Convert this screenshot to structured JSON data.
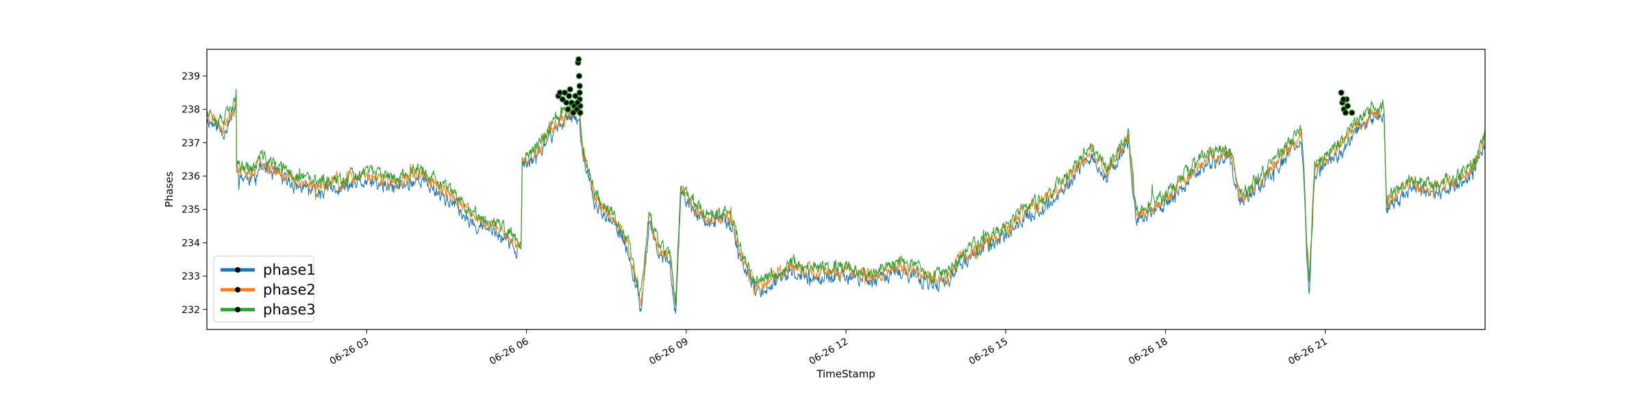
{
  "chart_data": {
    "type": "line",
    "xlabel": "TimeStamp",
    "ylabel": "Phases",
    "xlim_hours": [
      0.0,
      24.0
    ],
    "ylim": [
      231.4,
      239.8
    ],
    "x_ticks": [
      {
        "hour": 3,
        "label": "06-26 03"
      },
      {
        "hour": 6,
        "label": "06-26 06"
      },
      {
        "hour": 9,
        "label": "06-26 09"
      },
      {
        "hour": 12,
        "label": "06-26 12"
      },
      {
        "hour": 15,
        "label": "06-26 15"
      },
      {
        "hour": 18,
        "label": "06-26 18"
      },
      {
        "hour": 21,
        "label": "06-26 21"
      }
    ],
    "y_ticks": [
      232,
      233,
      234,
      235,
      236,
      237,
      238,
      239
    ],
    "legend": {
      "placement": "lower-left"
    },
    "grid": false,
    "base_profile": [
      [
        0.0,
        237.9
      ],
      [
        0.3,
        237.5
      ],
      [
        0.5,
        238.0
      ],
      [
        0.55,
        238.4
      ],
      [
        0.55,
        236.2
      ],
      [
        0.9,
        236.1
      ],
      [
        1.0,
        236.5
      ],
      [
        1.5,
        236.0
      ],
      [
        2.0,
        235.7
      ],
      [
        2.5,
        235.8
      ],
      [
        3.0,
        236.0
      ],
      [
        3.5,
        235.8
      ],
      [
        4.0,
        236.1
      ],
      [
        4.5,
        235.5
      ],
      [
        5.0,
        234.8
      ],
      [
        5.5,
        234.4
      ],
      [
        5.9,
        233.9
      ],
      [
        5.92,
        236.4
      ],
      [
        6.2,
        236.8
      ],
      [
        6.6,
        237.7
      ],
      [
        6.9,
        238.0
      ],
      [
        7.0,
        237.9
      ],
      [
        7.05,
        236.8
      ],
      [
        7.3,
        235.3
      ],
      [
        7.6,
        234.8
      ],
      [
        7.9,
        234.0
      ],
      [
        8.15,
        232.2
      ],
      [
        8.3,
        234.7
      ],
      [
        8.5,
        233.8
      ],
      [
        8.7,
        233.6
      ],
      [
        8.8,
        232.0
      ],
      [
        8.9,
        235.6
      ],
      [
        9.2,
        235.0
      ],
      [
        9.5,
        234.7
      ],
      [
        9.7,
        234.9
      ],
      [
        9.9,
        234.5
      ],
      [
        10.0,
        233.8
      ],
      [
        10.3,
        232.7
      ],
      [
        10.6,
        232.9
      ],
      [
        11.0,
        233.3
      ],
      [
        11.5,
        233.1
      ],
      [
        12.0,
        233.2
      ],
      [
        12.5,
        233.0
      ],
      [
        13.0,
        233.3
      ],
      [
        13.3,
        233.2
      ],
      [
        13.6,
        232.9
      ],
      [
        13.9,
        233.0
      ],
      [
        14.2,
        233.6
      ],
      [
        14.6,
        234.0
      ],
      [
        15.0,
        234.4
      ],
      [
        15.4,
        235.0
      ],
      [
        15.8,
        235.3
      ],
      [
        16.2,
        236.0
      ],
      [
        16.6,
        236.8
      ],
      [
        16.9,
        236.1
      ],
      [
        17.3,
        237.2
      ],
      [
        17.45,
        234.8
      ],
      [
        17.9,
        235.2
      ],
      [
        18.3,
        235.8
      ],
      [
        18.8,
        236.6
      ],
      [
        19.2,
        236.7
      ],
      [
        19.4,
        235.3
      ],
      [
        19.9,
        236.1
      ],
      [
        20.3,
        236.8
      ],
      [
        20.55,
        237.3
      ],
      [
        20.6,
        236.0
      ],
      [
        20.65,
        234.0
      ],
      [
        20.7,
        232.8
      ],
      [
        20.8,
        236.2
      ],
      [
        21.2,
        236.8
      ],
      [
        21.6,
        237.5
      ],
      [
        21.9,
        237.9
      ],
      [
        22.1,
        238.0
      ],
      [
        22.15,
        235.2
      ],
      [
        22.6,
        235.8
      ],
      [
        23.0,
        235.6
      ],
      [
        23.5,
        235.9
      ],
      [
        23.8,
        236.3
      ],
      [
        24.0,
        237.2
      ]
    ],
    "series": [
      {
        "name": "phase1",
        "color": "#1f77b4",
        "offset": -0.18,
        "noise": 0.22,
        "seed": 11
      },
      {
        "name": "phase2",
        "color": "#ff7f0e",
        "offset": 0.0,
        "noise": 0.2,
        "seed": 23
      },
      {
        "name": "phase3",
        "color": "#2ca02c",
        "offset": 0.12,
        "noise": 0.2,
        "seed": 37
      }
    ],
    "anomalies": [
      {
        "hour": 6.6,
        "value": 238.4
      },
      {
        "hour": 6.63,
        "value": 238.5
      },
      {
        "hour": 6.68,
        "value": 238.3
      },
      {
        "hour": 6.72,
        "value": 238.5
      },
      {
        "hour": 6.75,
        "value": 238.2
      },
      {
        "hour": 6.78,
        "value": 238.0
      },
      {
        "hour": 6.8,
        "value": 238.4
      },
      {
        "hour": 6.82,
        "value": 238.6
      },
      {
        "hour": 6.85,
        "value": 238.2
      },
      {
        "hour": 6.88,
        "value": 237.9
      },
      {
        "hour": 6.9,
        "value": 238.1
      },
      {
        "hour": 6.92,
        "value": 238.4
      },
      {
        "hour": 6.95,
        "value": 238.0
      },
      {
        "hour": 6.97,
        "value": 239.4
      },
      {
        "hour": 6.98,
        "value": 239.5
      },
      {
        "hour": 6.99,
        "value": 239.0
      },
      {
        "hour": 7.0,
        "value": 238.7
      },
      {
        "hour": 7.0,
        "value": 238.5
      },
      {
        "hour": 7.0,
        "value": 238.3
      },
      {
        "hour": 7.01,
        "value": 238.1
      },
      {
        "hour": 7.01,
        "value": 237.9
      },
      {
        "hour": 6.96,
        "value": 238.2
      },
      {
        "hour": 21.3,
        "value": 238.5
      },
      {
        "hour": 21.32,
        "value": 238.2
      },
      {
        "hour": 21.35,
        "value": 238.0
      },
      {
        "hour": 21.38,
        "value": 237.9
      },
      {
        "hour": 21.4,
        "value": 238.3
      },
      {
        "hour": 21.42,
        "value": 238.1
      },
      {
        "hour": 21.5,
        "value": 237.9
      },
      {
        "hour": 21.34,
        "value": 238.3
      }
    ]
  }
}
